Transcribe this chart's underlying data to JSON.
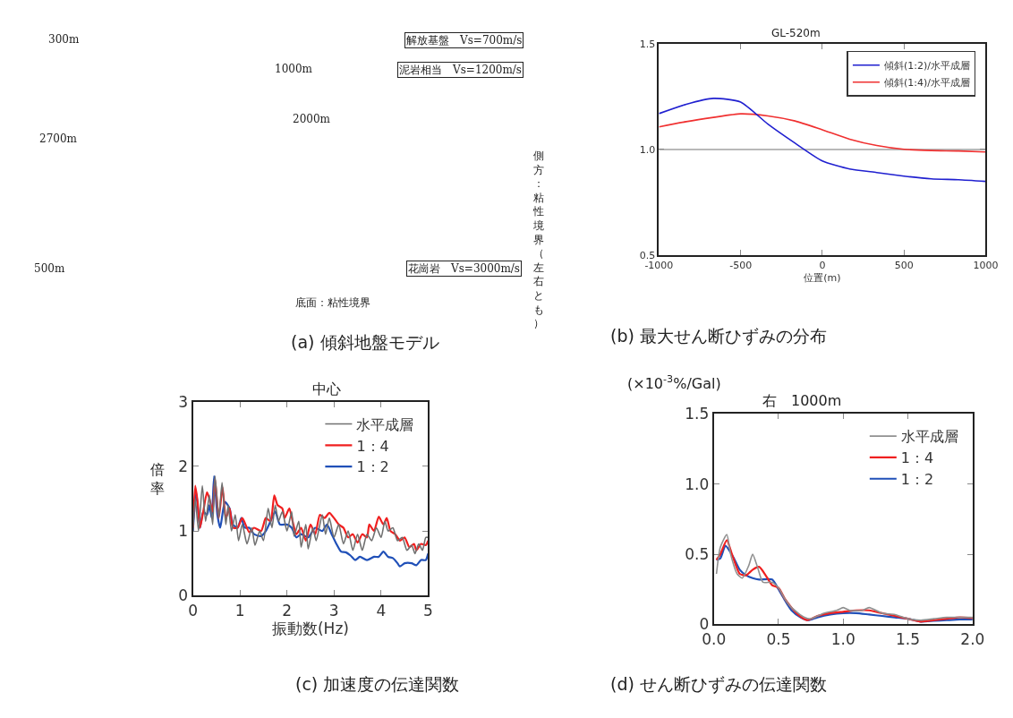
{
  "chart_data": [
    {
      "type": "other",
      "title": "(a) 傾斜地盤モデル",
      "annotations": [
        "300m",
        "2700m",
        "500m",
        "1000m",
        "2000m",
        "解放基盤　Vs=700m/s",
        "泥岩相当　Vs=1200m/s",
        "花崗岩　Vs=3000m/s",
        "側方：粘性境界（左右とも）",
        "底面：粘性境界"
      ]
    },
    {
      "type": "line",
      "title": "GL-520m",
      "xlabel": "位置(m)",
      "x": [
        -1000,
        -833,
        -667,
        -500,
        -333,
        -167,
        0,
        167,
        333,
        500,
        667,
        833,
        1000
      ],
      "series": [
        {
          "name": "傾斜(1:2)/水平成層",
          "color": "#2020d0",
          "values": [
            1.17,
            1.214,
            1.242,
            1.225,
            1.12,
            1.03,
            0.946,
            0.908,
            0.891,
            0.874,
            0.861,
            0.857,
            0.849
          ]
        },
        {
          "name": "傾斜(1:4)/水平成層",
          "color": "#f03030",
          "values": [
            1.107,
            1.132,
            1.152,
            1.169,
            1.159,
            1.135,
            1.093,
            1.049,
            1.019,
            1.001,
            0.995,
            0.993,
            0.988
          ]
        }
      ],
      "xlim": [
        -1000,
        1000
      ],
      "xticks": [
        -1000,
        -500,
        0,
        500,
        1000
      ],
      "ylim": [
        0.5,
        1.5
      ],
      "yticks": [
        {
          "value": 0.5,
          "label": "0.5"
        },
        {
          "value": 1.0,
          "label": "1.0"
        },
        {
          "value": 1.5,
          "label": "1.5"
        }
      ],
      "ref_lines": [
        {
          "axis": "y",
          "value": 1.0,
          "label": null,
          "color": "#a0a0a0"
        }
      ],
      "legend": "top right",
      "grid": false,
      "annotations": [
        "(b) 最大せん断ひずみの分布"
      ]
    },
    {
      "type": "line",
      "title": "中心",
      "xlabel": "振動数(Hz)",
      "ylabel": "倍率",
      "series": [
        {
          "name": "水平成層",
          "color": "#707070",
          "x": [
            0,
            0.05,
            0.12,
            0.2,
            0.27,
            0.35,
            0.42,
            0.47,
            0.55,
            0.62,
            0.7,
            0.75,
            0.82,
            0.9,
            0.97,
            1.05,
            1.15,
            1.25,
            1.32,
            1.42,
            1.5,
            1.6,
            1.68,
            1.75,
            1.82,
            1.9,
            2.0,
            2.1,
            2.15,
            2.25,
            2.3,
            2.4,
            2.45,
            2.55,
            2.62,
            2.75,
            2.82,
            2.9,
            3.0,
            3.1,
            3.2,
            3.3,
            3.4,
            3.5,
            3.6,
            3.7,
            3.8,
            3.9,
            4.0,
            4.08,
            4.15,
            4.25,
            4.35,
            4.45,
            4.55,
            4.65,
            4.72,
            4.8,
            4.88,
            4.95,
            5.0
          ],
          "values": [
            1.0,
            1.5,
            1.0,
            1.7,
            1.15,
            1.55,
            1.1,
            1.85,
            1.2,
            1.75,
            1.1,
            1.4,
            1.0,
            1.25,
            0.85,
            1.1,
            0.8,
            1.05,
            0.78,
            1.0,
            0.85,
            1.35,
            1.05,
            1.4,
            1.15,
            1.3,
            1.0,
            1.3,
            0.92,
            1.15,
            0.75,
            1.1,
            0.72,
            1.05,
            0.85,
            1.25,
            0.95,
            1.2,
            0.9,
            1.1,
            0.8,
            1.0,
            0.7,
            0.95,
            0.7,
            0.95,
            0.85,
            1.05,
            0.9,
            1.15,
            1.0,
            1.05,
            0.85,
            0.9,
            0.7,
            0.78,
            0.65,
            0.8,
            0.7,
            0.9,
            0.9
          ]
        },
        {
          "name": "1：4",
          "color": "#f02020",
          "x": [
            0,
            0.05,
            0.1,
            0.15,
            0.22,
            0.3,
            0.35,
            0.42,
            0.47,
            0.55,
            0.63,
            0.7,
            0.78,
            0.85,
            0.95,
            1.05,
            1.2,
            1.3,
            1.45,
            1.55,
            1.65,
            1.73,
            1.8,
            1.9,
            1.95,
            2.05,
            2.12,
            2.2,
            2.3,
            2.4,
            2.5,
            2.6,
            2.7,
            2.8,
            2.9,
            3.0,
            3.1,
            3.2,
            3.3,
            3.4,
            3.5,
            3.6,
            3.7,
            3.75,
            3.85,
            3.95,
            4.05,
            4.12,
            4.2,
            4.3,
            4.4,
            4.5,
            4.6,
            4.7,
            4.75,
            4.85,
            4.95,
            5.0
          ],
          "values": [
            1.05,
            1.7,
            1.45,
            1.05,
            1.3,
            1.6,
            1.5,
            1.3,
            1.8,
            1.2,
            1.68,
            1.2,
            1.35,
            1.05,
            1.05,
            1.2,
            0.98,
            1.05,
            1.0,
            1.2,
            1.15,
            1.55,
            1.4,
            1.35,
            1.2,
            1.35,
            1.15,
            0.95,
            1.05,
            0.85,
            1.1,
            0.95,
            1.25,
            1.2,
            1.28,
            1.2,
            1.1,
            1.05,
            0.9,
            0.95,
            0.82,
            0.95,
            0.9,
            1.1,
            1.0,
            1.22,
            1.1,
            1.2,
            1.0,
            0.95,
            0.85,
            0.9,
            0.75,
            0.8,
            0.7,
            0.8,
            0.78,
            0.85
          ]
        },
        {
          "name": "1：2",
          "color": "#2050b8",
          "x": [
            0,
            0.07,
            0.15,
            0.22,
            0.3,
            0.35,
            0.4,
            0.45,
            0.52,
            0.58,
            0.68,
            0.78,
            0.85,
            0.95,
            1.03,
            1.1,
            1.2,
            1.3,
            1.45,
            1.55,
            1.65,
            1.75,
            1.85,
            2.0,
            2.1,
            2.2,
            2.3,
            2.45,
            2.6,
            2.75,
            2.85,
            2.95,
            3.05,
            3.15,
            3.25,
            3.35,
            3.45,
            3.55,
            3.7,
            3.85,
            3.95,
            4.05,
            4.15,
            4.25,
            4.35,
            4.4,
            4.5,
            4.65,
            4.75,
            4.85,
            4.95,
            5.0
          ],
          "values": [
            1.0,
            1.6,
            1.05,
            1.3,
            1.25,
            1.4,
            1.2,
            1.85,
            1.25,
            1.05,
            1.45,
            1.35,
            1.1,
            1.05,
            1.2,
            1.05,
            1.05,
            0.95,
            0.92,
            1.0,
            1.15,
            1.3,
            1.1,
            1.1,
            1.05,
            0.9,
            0.95,
            0.9,
            1.05,
            1.0,
            1.1,
            0.95,
            0.8,
            0.68,
            0.67,
            0.62,
            0.55,
            0.6,
            0.55,
            0.6,
            0.6,
            0.68,
            0.6,
            0.58,
            0.5,
            0.45,
            0.5,
            0.5,
            0.47,
            0.55,
            0.55,
            0.65
          ]
        }
      ],
      "xlim": [
        0,
        5
      ],
      "xticks": [
        0,
        1,
        2,
        3,
        4,
        5
      ],
      "ylim": [
        0,
        3
      ],
      "yticks": [
        0,
        1,
        2,
        3
      ],
      "legend": "top right",
      "grid": false,
      "annotations": [
        "(c) 加速度の伝達関数"
      ]
    },
    {
      "type": "line",
      "title": "右　1000m",
      "ylabel": "(×10$^{-3}$%/Gal)",
      "series": [
        {
          "name": "水平成層",
          "color": "#909090",
          "x": [
            0.02,
            0.05,
            0.1,
            0.13,
            0.18,
            0.22,
            0.27,
            0.3,
            0.34,
            0.38,
            0.45,
            0.5,
            0.55,
            0.6,
            0.7,
            0.75,
            0.85,
            0.95,
            1.0,
            1.05,
            1.15,
            1.2,
            1.3,
            1.4,
            1.5,
            1.6,
            1.7,
            1.8,
            1.9,
            2.0
          ],
          "values": [
            0.36,
            0.55,
            0.64,
            0.5,
            0.36,
            0.33,
            0.42,
            0.5,
            0.4,
            0.3,
            0.3,
            0.26,
            0.18,
            0.12,
            0.05,
            0.04,
            0.08,
            0.1,
            0.12,
            0.1,
            0.1,
            0.12,
            0.08,
            0.07,
            0.04,
            0.03,
            0.04,
            0.05,
            0.05,
            0.05
          ]
        },
        {
          "name": "1：4",
          "color": "#f02020",
          "x": [
            0.02,
            0.05,
            0.1,
            0.14,
            0.2,
            0.25,
            0.3,
            0.35,
            0.4,
            0.45,
            0.5,
            0.55,
            0.6,
            0.65,
            0.72,
            0.8,
            0.9,
            1.0,
            1.1,
            1.2,
            1.3,
            1.4,
            1.5,
            1.6,
            1.7,
            1.8,
            1.9,
            2.0
          ],
          "values": [
            0.46,
            0.5,
            0.6,
            0.5,
            0.36,
            0.35,
            0.39,
            0.41,
            0.35,
            0.28,
            0.26,
            0.18,
            0.12,
            0.07,
            0.03,
            0.06,
            0.08,
            0.09,
            0.1,
            0.1,
            0.08,
            0.06,
            0.04,
            0.02,
            0.03,
            0.04,
            0.05,
            0.045
          ]
        },
        {
          "name": "1：2",
          "color": "#2050b8",
          "x": [
            0.02,
            0.05,
            0.09,
            0.15,
            0.2,
            0.25,
            0.3,
            0.35,
            0.45,
            0.5,
            0.55,
            0.6,
            0.67,
            0.73,
            0.8,
            0.9,
            1.0,
            1.1,
            1.2,
            1.3,
            1.4,
            1.5,
            1.6,
            1.7,
            1.8,
            1.9,
            2.0
          ],
          "values": [
            0.46,
            0.47,
            0.56,
            0.48,
            0.39,
            0.35,
            0.33,
            0.32,
            0.32,
            0.25,
            0.17,
            0.1,
            0.05,
            0.03,
            0.05,
            0.07,
            0.08,
            0.08,
            0.07,
            0.06,
            0.05,
            0.04,
            0.02,
            0.025,
            0.03,
            0.035,
            0.035
          ]
        }
      ],
      "xlim": [
        0,
        2
      ],
      "xticks": [
        {
          "value": 0,
          "label": "0.0"
        },
        {
          "value": 0.5,
          "label": "0.5"
        },
        {
          "value": 1,
          "label": "1.0"
        },
        {
          "value": 1.5,
          "label": "1.5"
        },
        {
          "value": 2,
          "label": "2.0"
        }
      ],
      "ylim": [
        0,
        1.5
      ],
      "yticks": [
        0,
        0.5,
        {
          "value": 1.0,
          "label": "1.0"
        },
        1.5
      ],
      "legend": "top right",
      "grid": false,
      "annotations": [
        "(d) せん断ひずみの伝達関数"
      ]
    }
  ]
}
